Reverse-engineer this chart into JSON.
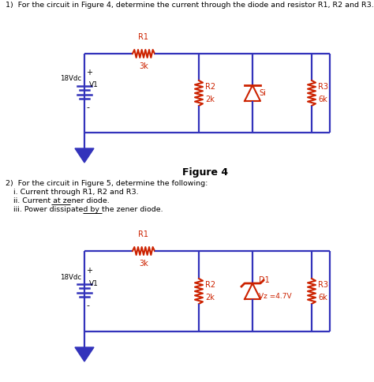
{
  "title1": "1)  For the circuit in Figure 4, determine the current through the diode and resistor R1, R2 and R3.",
  "title2": "2)  For the circuit in Figure 5, determine the following:",
  "sub2i": "i. Current through R1, R2 and R3.",
  "sub2ii": "ii. Current at zener diode.",
  "sub2iii": "iii. Power dissipated by the zener diode.",
  "fig4_label": "Figure 4",
  "bg_color": "#ffffff",
  "wire_color": "#3333bb",
  "resistor_color": "#cc2200",
  "text_color": "#000000",
  "fig4": {
    "V1_label": "V1",
    "Vdc_label": "18Vdc",
    "R1_label": "R1",
    "R1_val": "3k",
    "R2_label": "R2",
    "R2_val": "2k",
    "R3_label": "R3",
    "R3_val": "6k",
    "diode_label": "Si"
  },
  "fig5": {
    "V1_label": "V1",
    "Vdc_label": "18Vdc",
    "R1_label": "R1",
    "R1_val": "3k",
    "R2_label": "R2",
    "R2_val": "2k",
    "R3_label": "R3",
    "R3_val": "6k",
    "diode_label": "D1",
    "zener_val": "Vz =4.7V"
  }
}
